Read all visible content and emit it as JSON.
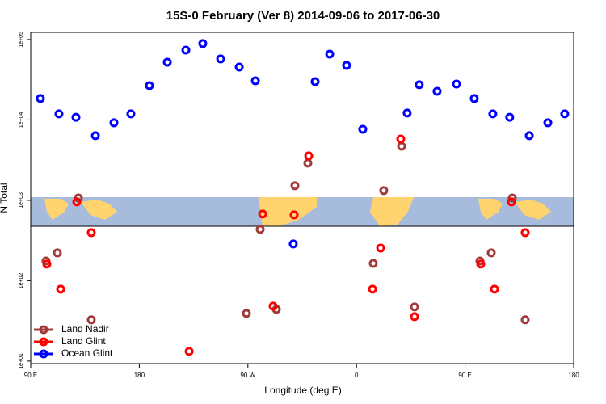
{
  "chart_data": {
    "type": "scatter",
    "title": "15S-0 February (Ver 8)   2014-09-06 to 2017-06-30",
    "xlabel": "Longitude (deg E)",
    "ylabel": "N Total",
    "xlim": [
      90,
      540
    ],
    "xticks": [
      {
        "value": 90,
        "label": "90 E"
      },
      {
        "value": 180,
        "label": "180"
      },
      {
        "value": 270,
        "label": "90 W"
      },
      {
        "value": 360,
        "label": "0"
      },
      {
        "value": 450,
        "label": "90 E"
      },
      {
        "value": 540,
        "label": "180"
      }
    ],
    "ylim": [
      9.3,
      123000
    ],
    "log_y": true,
    "yticks": [
      {
        "value": 10,
        "label": "1e+01"
      },
      {
        "value": 100,
        "label": "1e+02"
      },
      {
        "value": 1000,
        "label": "1e+03"
      },
      {
        "value": 10000,
        "label": "1e+04"
      },
      {
        "value": 100000,
        "label": "1e+05"
      }
    ],
    "legend": "bottomleft",
    "series": [
      {
        "name": "Land Nadir",
        "color": "#a33a3a",
        "x": [
          102.7,
          112.1,
          129.5,
          140.2,
          268.8,
          280.2,
          293.6,
          309,
          319.7,
          382.6,
          397.4,
          373.9,
          408.1,
          462.3,
          471.7,
          489.1,
          499.8
        ],
        "values": [
          176,
          222,
          1070,
          32.6,
          39.2,
          435,
          44,
          1520,
          2900,
          1320,
          4710,
          164,
          47.1,
          176,
          222,
          1070,
          32.6
        ]
      },
      {
        "name": "Land Glint",
        "color": "#ff0000",
        "x": [
          103.4,
          114.8,
          128.2,
          140.2,
          221.3,
          282.2,
          290.9,
          308.3,
          320.4,
          373.3,
          380,
          396.7,
          408.1,
          463,
          474.4,
          488.4,
          499.8
        ],
        "values": [
          161,
          78.4,
          955,
          396,
          13.2,
          675,
          48.2,
          659,
          3570,
          78.4,
          255,
          5800,
          35.7,
          161,
          78.4,
          955,
          396
        ]
      },
      {
        "name": "Ocean Glint",
        "color": "#0000ff",
        "x": [
          98,
          113.4,
          127.5,
          143.6,
          159,
          173,
          188.4,
          203.2,
          218.6,
          232.6,
          247.4,
          262.8,
          276.2,
          307.6,
          325.7,
          337.8,
          351.8,
          365.2,
          402,
          412,
          426.8,
          442.9,
          457.6,
          473,
          487,
          503.2,
          518.6,
          532.6
        ],
        "values": [
          18500,
          11900,
          10800,
          6370,
          9220,
          11900,
          26700,
          52300,
          74000,
          89100,
          57400,
          45500,
          30700,
          287,
          30000,
          65900,
          47700,
          7660,
          12200,
          27400,
          22700,
          28000,
          18500,
          11900,
          10800,
          6370,
          9220,
          11900
        ]
      }
    ]
  }
}
